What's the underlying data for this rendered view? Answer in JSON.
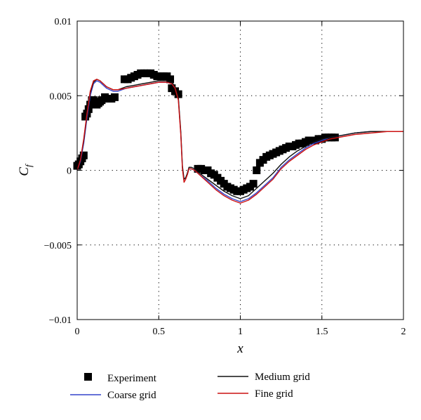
{
  "chart_data": {
    "type": "line",
    "xlabel": "x",
    "ylabel": "C",
    "ylabel_subscript": "f",
    "xlim": [
      0,
      2
    ],
    "ylim": [
      -0.01,
      0.01
    ],
    "x_ticks": [
      0,
      0.5,
      1,
      1.5,
      2
    ],
    "x_tick_labels": [
      "0",
      "0.5",
      "1",
      "1.5",
      "2"
    ],
    "y_ticks": [
      -0.01,
      -0.005,
      0,
      0.005,
      0.01
    ],
    "y_tick_labels": [
      "−0.01",
      "−0.005",
      "0",
      "0.005",
      "0.01"
    ],
    "grid": true,
    "legend_position": "bottom",
    "series": [
      {
        "name": "Experiment",
        "kind": "scatter",
        "marker": "square",
        "color": "#000000",
        "x": [
          0.0,
          0.01,
          0.02,
          0.03,
          0.04,
          0.05,
          0.06,
          0.07,
          0.08,
          0.09,
          0.1,
          0.11,
          0.12,
          0.13,
          0.14,
          0.15,
          0.17,
          0.19,
          0.21,
          0.23,
          0.29,
          0.31,
          0.33,
          0.35,
          0.37,
          0.39,
          0.41,
          0.43,
          0.45,
          0.47,
          0.49,
          0.51,
          0.53,
          0.55,
          0.57,
          0.58,
          0.6,
          0.62,
          0.74,
          0.76,
          0.78,
          0.8,
          0.82,
          0.84,
          0.86,
          0.88,
          0.9,
          0.92,
          0.94,
          0.96,
          0.98,
          1.0,
          1.02,
          1.04,
          1.06,
          1.08,
          1.1,
          1.12,
          1.14,
          1.16,
          1.18,
          1.2,
          1.22,
          1.24,
          1.26,
          1.28,
          1.3,
          1.32,
          1.34,
          1.36,
          1.38,
          1.4,
          1.42,
          1.44,
          1.46,
          1.48,
          1.5,
          1.52,
          1.54,
          1.56,
          1.58
        ],
        "y": [
          0.0003,
          0.0004,
          0.0006,
          0.0008,
          0.001,
          0.0036,
          0.0038,
          0.0041,
          0.0044,
          0.0047,
          0.0047,
          0.0045,
          0.0044,
          0.0045,
          0.0046,
          0.0047,
          0.0049,
          0.0048,
          0.0048,
          0.0049,
          0.0061,
          0.0061,
          0.0062,
          0.0063,
          0.0064,
          0.0065,
          0.0065,
          0.0065,
          0.0065,
          0.0064,
          0.0063,
          0.0063,
          0.0063,
          0.0063,
          0.0061,
          0.0055,
          0.0053,
          0.0051,
          0.0001,
          0.0001,
          0.0,
          0.0,
          -0.0002,
          -0.0003,
          -0.0005,
          -0.0007,
          -0.0009,
          -0.0011,
          -0.0012,
          -0.0013,
          -0.0014,
          -0.0014,
          -0.0013,
          -0.0012,
          -0.0011,
          -0.0009,
          0.0,
          0.0005,
          0.0007,
          0.0009,
          0.001,
          0.0011,
          0.0012,
          0.0013,
          0.0014,
          0.0015,
          0.0016,
          0.0016,
          0.0017,
          0.0018,
          0.0018,
          0.0019,
          0.002,
          0.002,
          0.002,
          0.0021,
          0.0021,
          0.0022,
          0.0022,
          0.0022,
          0.0022
        ]
      },
      {
        "name": "Coarse grid",
        "kind": "line",
        "color": "#3344cc",
        "x": [
          0.0,
          0.02,
          0.04,
          0.06,
          0.08,
          0.1,
          0.12,
          0.14,
          0.16,
          0.18,
          0.2,
          0.22,
          0.25,
          0.3,
          0.35,
          0.4,
          0.45,
          0.5,
          0.55,
          0.58,
          0.6,
          0.62,
          0.635,
          0.645,
          0.655,
          0.665,
          0.675,
          0.685,
          0.7,
          0.72,
          0.75,
          0.8,
          0.85,
          0.9,
          0.95,
          1.0,
          1.05,
          1.1,
          1.15,
          1.2,
          1.25,
          1.3,
          1.35,
          1.4,
          1.45,
          1.5,
          1.55,
          1.6,
          1.7,
          1.8,
          1.9,
          2.0
        ],
        "y": [
          0.0,
          0.0006,
          0.0018,
          0.0035,
          0.005,
          0.0058,
          0.006,
          0.0059,
          0.0057,
          0.0055,
          0.0054,
          0.0053,
          0.0053,
          0.0055,
          0.0056,
          0.0057,
          0.0058,
          0.0059,
          0.0059,
          0.0058,
          0.0055,
          0.0048,
          0.0025,
          0.0002,
          -0.0006,
          -0.0005,
          -0.0003,
          0.0001,
          0.0001,
          0.0,
          -0.0003,
          -0.0007,
          -0.0012,
          -0.0016,
          -0.0019,
          -0.0021,
          -0.0019,
          -0.0015,
          -0.001,
          -0.0005,
          0.0002,
          0.0007,
          0.0011,
          0.0015,
          0.0018,
          0.002,
          0.0022,
          0.0023,
          0.0025,
          0.0026,
          0.0026,
          0.0026
        ]
      },
      {
        "name": "Medium grid",
        "kind": "line",
        "color": "#111111",
        "x": [
          0.0,
          0.02,
          0.04,
          0.06,
          0.08,
          0.1,
          0.12,
          0.14,
          0.16,
          0.18,
          0.2,
          0.22,
          0.25,
          0.3,
          0.35,
          0.4,
          0.45,
          0.5,
          0.55,
          0.58,
          0.6,
          0.62,
          0.635,
          0.645,
          0.655,
          0.665,
          0.675,
          0.685,
          0.7,
          0.72,
          0.75,
          0.8,
          0.85,
          0.9,
          0.95,
          1.0,
          1.05,
          1.1,
          1.15,
          1.2,
          1.25,
          1.3,
          1.35,
          1.4,
          1.45,
          1.5,
          1.55,
          1.6,
          1.7,
          1.8,
          1.9,
          2.0
        ],
        "y": [
          0.0,
          0.0007,
          0.002,
          0.0037,
          0.0052,
          0.0059,
          0.0061,
          0.006,
          0.0058,
          0.0056,
          0.0055,
          0.0054,
          0.0054,
          0.0056,
          0.0057,
          0.0058,
          0.0059,
          0.006,
          0.006,
          0.0059,
          0.0056,
          0.0049,
          0.0026,
          0.0003,
          -0.0006,
          -0.0005,
          -0.0002,
          0.0002,
          0.0002,
          0.0001,
          -0.0002,
          -0.0006,
          -0.001,
          -0.0014,
          -0.0017,
          -0.0019,
          -0.0017,
          -0.0012,
          -0.0007,
          -0.0002,
          0.0004,
          0.0009,
          0.0013,
          0.0016,
          0.0019,
          0.0021,
          0.0022,
          0.0023,
          0.0025,
          0.0026,
          0.0026,
          0.0026
        ]
      },
      {
        "name": "Fine grid",
        "kind": "line",
        "color": "#cc1111",
        "x": [
          0.0,
          0.02,
          0.04,
          0.06,
          0.08,
          0.1,
          0.12,
          0.14,
          0.16,
          0.18,
          0.2,
          0.22,
          0.25,
          0.3,
          0.35,
          0.4,
          0.45,
          0.5,
          0.55,
          0.58,
          0.6,
          0.62,
          0.635,
          0.645,
          0.655,
          0.665,
          0.675,
          0.685,
          0.7,
          0.72,
          0.75,
          0.8,
          0.85,
          0.9,
          0.95,
          1.0,
          1.05,
          1.1,
          1.15,
          1.2,
          1.25,
          1.3,
          1.35,
          1.4,
          1.45,
          1.5,
          1.55,
          1.6,
          1.7,
          1.8,
          1.9,
          2.0
        ],
        "y": [
          0.0,
          0.0007,
          0.0021,
          0.0038,
          0.0053,
          0.006,
          0.0061,
          0.006,
          0.0058,
          0.0056,
          0.0055,
          0.0054,
          0.0054,
          0.0055,
          0.0056,
          0.0057,
          0.0058,
          0.0059,
          0.0059,
          0.0058,
          0.0055,
          0.0047,
          0.0024,
          0.0001,
          -0.0008,
          -0.0006,
          -0.0003,
          0.0001,
          0.0001,
          0.0,
          -0.0003,
          -0.0008,
          -0.0013,
          -0.0017,
          -0.002,
          -0.0022,
          -0.002,
          -0.0016,
          -0.0011,
          -0.0006,
          0.0001,
          0.0006,
          0.001,
          0.0014,
          0.0017,
          0.0019,
          0.0021,
          0.0022,
          0.0024,
          0.0025,
          0.0026,
          0.0026
        ]
      }
    ]
  }
}
